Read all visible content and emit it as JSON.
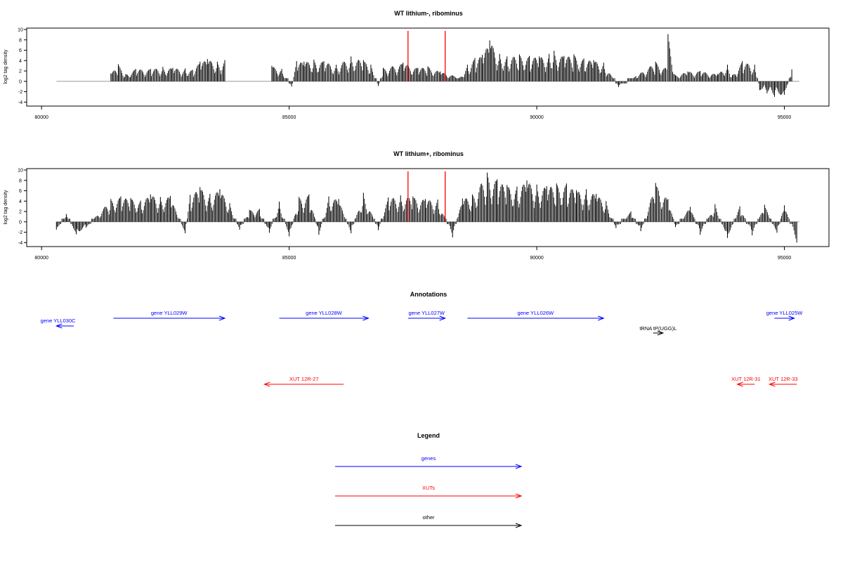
{
  "chart_data": [
    {
      "type": "bar",
      "title": "WT lithium-, ribominus",
      "ylabel": "log2 tag density",
      "xlim": [
        79700,
        95900
      ],
      "ylim": [
        -4.5,
        10
      ],
      "x_ticks": [
        80000,
        85000,
        90000,
        95000
      ],
      "y_ticks": [
        -4,
        -2,
        0,
        2,
        4,
        6,
        8,
        10
      ],
      "grid": false,
      "baseline_range": [
        80300,
        95300
      ],
      "markers": [
        87400,
        88150
      ],
      "series": [
        {
          "values": [
            [
              81400,
              1.5
            ],
            [
              81550,
              3.3
            ],
            [
              81700,
              1.4
            ],
            [
              81900,
              2.4
            ],
            [
              82200,
              2.4
            ],
            [
              82450,
              2.8
            ],
            [
              82650,
              2.6
            ],
            [
              82900,
              2.5
            ],
            [
              83050,
              2.2
            ],
            [
              83200,
              3.8
            ],
            [
              83350,
              4.3
            ],
            [
              83550,
              3.8
            ],
            [
              83700,
              4.1
            ],
            [
              84650,
              3.0
            ],
            [
              84850,
              2.4
            ],
            [
              85050,
              -1.0
            ],
            [
              85150,
              3.9
            ],
            [
              85300,
              3.8
            ],
            [
              85500,
              4.2
            ],
            [
              85700,
              3.9
            ],
            [
              85950,
              3.2
            ],
            [
              86250,
              4.8
            ],
            [
              86500,
              4.1
            ],
            [
              86650,
              3.2
            ],
            [
              86800,
              -0.9
            ],
            [
              86900,
              2.6
            ],
            [
              87300,
              3.6
            ],
            [
              87600,
              2.6
            ],
            [
              87800,
              2.9
            ],
            [
              88050,
              1.9
            ],
            [
              88450,
              0.8
            ],
            [
              88600,
              3.2
            ],
            [
              88750,
              4.5
            ],
            [
              88900,
              5.1
            ],
            [
              89050,
              7.9
            ],
            [
              89250,
              5.3
            ],
            [
              89400,
              4.8
            ],
            [
              89650,
              5.2
            ],
            [
              89850,
              4.9
            ],
            [
              90050,
              4.8
            ],
            [
              90250,
              5.3
            ],
            [
              90350,
              5.9
            ],
            [
              90550,
              4.9
            ],
            [
              90750,
              5.2
            ],
            [
              90950,
              4.4
            ],
            [
              91150,
              4.1
            ],
            [
              91350,
              3.6
            ],
            [
              91650,
              -1.1
            ],
            [
              92000,
              1.0
            ],
            [
              92400,
              3.8
            ],
            [
              92600,
              2.6
            ],
            [
              92650,
              9.1
            ],
            [
              92800,
              1.2
            ],
            [
              93050,
              1.9
            ],
            [
              93300,
              2.0
            ],
            [
              93650,
              1.4
            ],
            [
              93850,
              3.2
            ],
            [
              93950,
              1.2
            ],
            [
              94150,
              3.9
            ],
            [
              94400,
              3.2
            ],
            [
              94500,
              -1.7
            ],
            [
              94650,
              -2.3
            ],
            [
              94800,
              -3.0
            ],
            [
              95000,
              -2.6
            ],
            [
              95150,
              2.3
            ]
          ]
        }
      ]
    },
    {
      "type": "bar",
      "title": "WT lithium+, ribominus",
      "ylabel": "log2 tag density",
      "xlim": [
        79700,
        95900
      ],
      "ylim": [
        -4.5,
        10
      ],
      "x_ticks": [
        80000,
        85000,
        90000,
        95000
      ],
      "y_ticks": [
        -4,
        -2,
        0,
        2,
        4,
        6,
        8,
        10
      ],
      "grid": false,
      "baseline_range": [
        80300,
        95300
      ],
      "markers": [
        87400,
        88150
      ],
      "series": [
        {
          "values": [
            [
              80300,
              -1.5
            ],
            [
              80500,
              1.5
            ],
            [
              80700,
              -2.4
            ],
            [
              80900,
              -1.1
            ],
            [
              81400,
              4.4
            ],
            [
              81600,
              4.9
            ],
            [
              81800,
              4.6
            ],
            [
              82000,
              4.1
            ],
            [
              82200,
              5.3
            ],
            [
              82400,
              4.8
            ],
            [
              82600,
              5.0
            ],
            [
              82900,
              -2.2
            ],
            [
              83000,
              5.2
            ],
            [
              83200,
              6.7
            ],
            [
              83400,
              5.4
            ],
            [
              83600,
              6.3
            ],
            [
              83800,
              3.6
            ],
            [
              84000,
              -1.5
            ],
            [
              84200,
              2.3
            ],
            [
              84400,
              2.5
            ],
            [
              84600,
              -2.1
            ],
            [
              84800,
              3.9
            ],
            [
              85000,
              -2.8
            ],
            [
              85200,
              4.8
            ],
            [
              85400,
              5.3
            ],
            [
              85600,
              -2.5
            ],
            [
              85800,
              4.9
            ],
            [
              86000,
              4.4
            ],
            [
              86250,
              -2.2
            ],
            [
              86500,
              5.6
            ],
            [
              86800,
              -1.6
            ],
            [
              87000,
              4.7
            ],
            [
              87250,
              5.1
            ],
            [
              87500,
              4.9
            ],
            [
              87750,
              4.4
            ],
            [
              88000,
              4.3
            ],
            [
              88300,
              -3.0
            ],
            [
              88500,
              4.5
            ],
            [
              88700,
              5.3
            ],
            [
              89000,
              9.5
            ],
            [
              89200,
              8.2
            ],
            [
              89400,
              7.1
            ],
            [
              89600,
              6.8
            ],
            [
              89800,
              8.0
            ],
            [
              90000,
              7.2
            ],
            [
              90200,
              6.9
            ],
            [
              90400,
              7.4
            ],
            [
              90600,
              7.4
            ],
            [
              90800,
              6.1
            ],
            [
              91000,
              6.3
            ],
            [
              91200,
              5.4
            ],
            [
              91400,
              4.0
            ],
            [
              91600,
              -1.2
            ],
            [
              91900,
              2.0
            ],
            [
              92100,
              -1.8
            ],
            [
              92400,
              7.5
            ],
            [
              92650,
              4.4
            ],
            [
              92800,
              -1.0
            ],
            [
              93100,
              2.9
            ],
            [
              93300,
              -2.5
            ],
            [
              93600,
              3.4
            ],
            [
              93850,
              -3.1
            ],
            [
              94100,
              3.0
            ],
            [
              94350,
              -2.6
            ],
            [
              94600,
              3.3
            ],
            [
              94850,
              -2.1
            ],
            [
              95000,
              3.2
            ],
            [
              95250,
              -4.0
            ]
          ]
        }
      ]
    }
  ],
  "annotations": {
    "title": "Annotations",
    "features": [
      {
        "label": "gene YLL030C",
        "type": "gene",
        "start": 80650,
        "end": 80300,
        "row": 1
      },
      {
        "label": "gene YLL029W",
        "type": "gene",
        "start": 81450,
        "end": 83700,
        "row": 0
      },
      {
        "label": "gene YLL028W",
        "type": "gene",
        "start": 84800,
        "end": 86600,
        "row": 0
      },
      {
        "label": "gene YLL027W",
        "type": "gene",
        "start": 87400,
        "end": 88150,
        "row": 0
      },
      {
        "label": "gene YLL026W",
        "type": "gene",
        "start": 88600,
        "end": 91350,
        "row": 0
      },
      {
        "label": "gene YLL025W",
        "type": "gene",
        "start": 94800,
        "end": 95200,
        "row": 0
      },
      {
        "label": "tRNA tP(UGG)L",
        "type": "other",
        "start": 92350,
        "end": 92550,
        "row": 2
      },
      {
        "label": "XUT 12R-27",
        "type": "xut",
        "start": 86100,
        "end": 84500,
        "row": 3
      },
      {
        "label": "XUT 12R-31",
        "type": "xut",
        "start": 94400,
        "end": 94050,
        "row": 3
      },
      {
        "label": "XUT 12R-33",
        "type": "xut",
        "start": 95250,
        "end": 94700,
        "row": 3
      }
    ]
  },
  "legend": {
    "title": "Legend",
    "items": [
      {
        "label": "genes",
        "color": "#0000ff"
      },
      {
        "label": "XUTs",
        "color": "#ff0000"
      },
      {
        "label": "other",
        "color": "#000000"
      }
    ]
  },
  "colors": {
    "gene": "#0000ff",
    "xut": "#ff0000",
    "other": "#000000",
    "marker": "#ff0000",
    "baseline": "#999999",
    "bars": "#000000"
  }
}
